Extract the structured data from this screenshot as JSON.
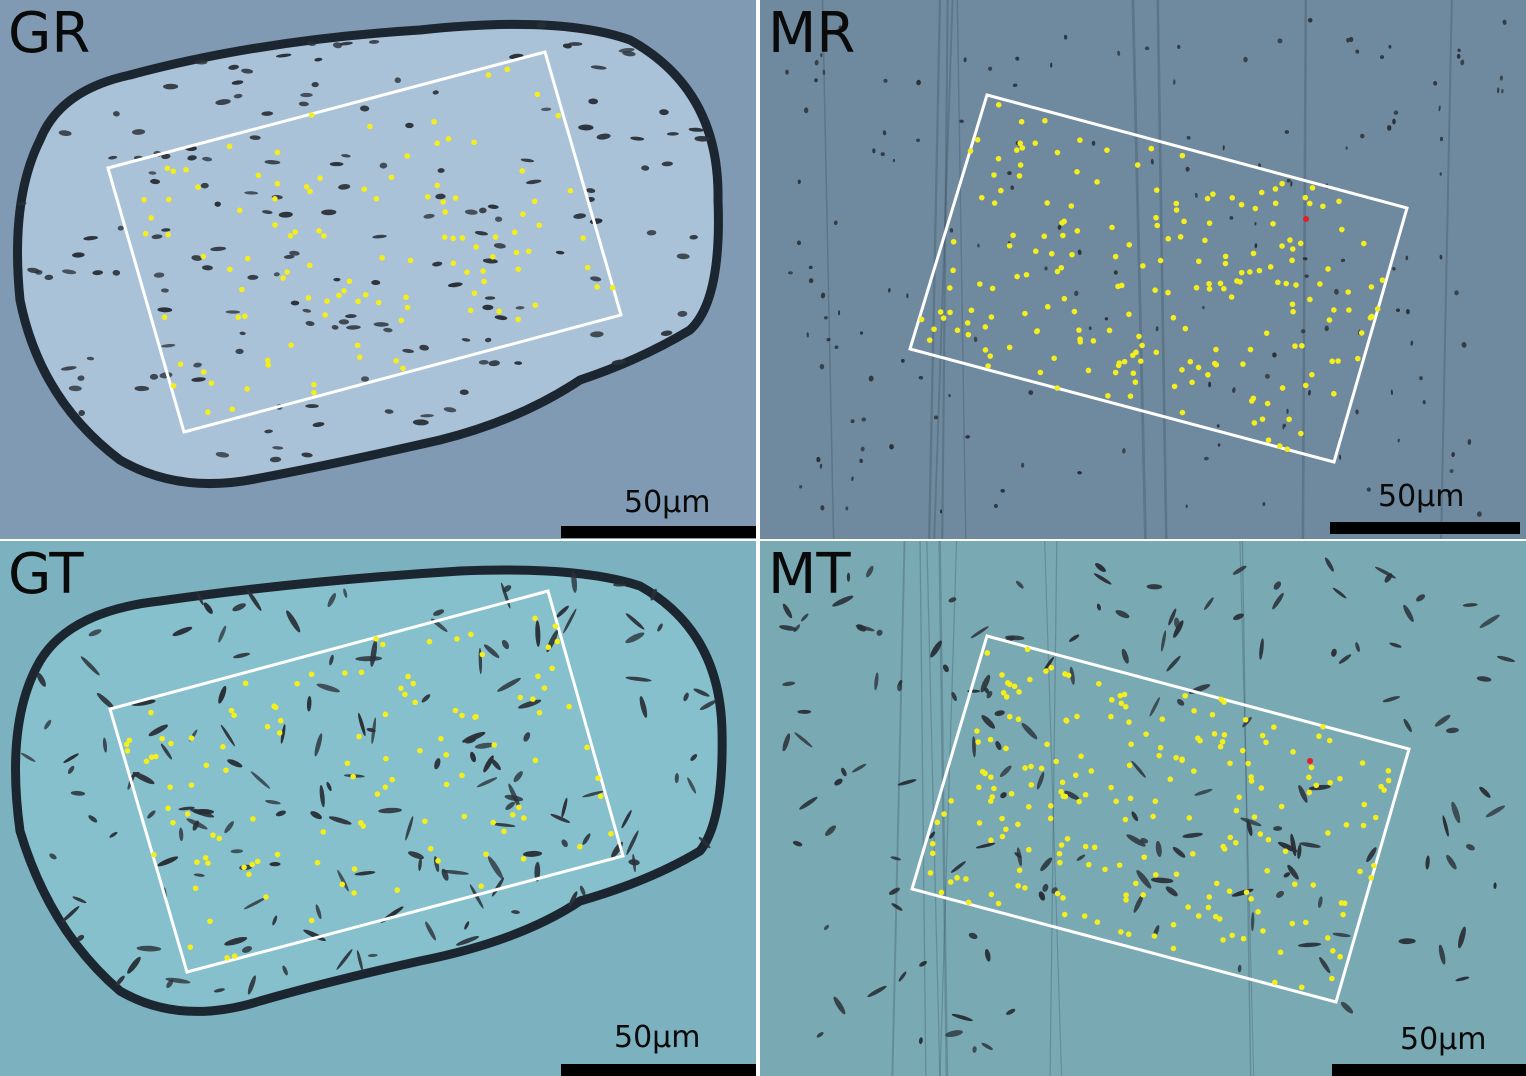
{
  "panels": [
    {
      "label": "GR",
      "scale_label": "50µm",
      "background": "#7f9ab2"
    },
    {
      "label": "MR",
      "scale_label": "50µm",
      "background": "#6f8a9e"
    },
    {
      "label": "GT",
      "scale_label": "50µm",
      "background": "#7cb2c0"
    },
    {
      "label": "MT",
      "scale_label": "50µm",
      "background": "#79a9b3"
    }
  ],
  "colors": {
    "marker": "#f4ee1c",
    "highlight_marker": "#e0202a",
    "roi_outline": "#ffffff",
    "grain_rim": "#1c2630",
    "track": "#2a3038"
  },
  "icons": [
    "yellow-point-marker",
    "red-point-marker",
    "roi-rectangle",
    "scale-bar"
  ]
}
